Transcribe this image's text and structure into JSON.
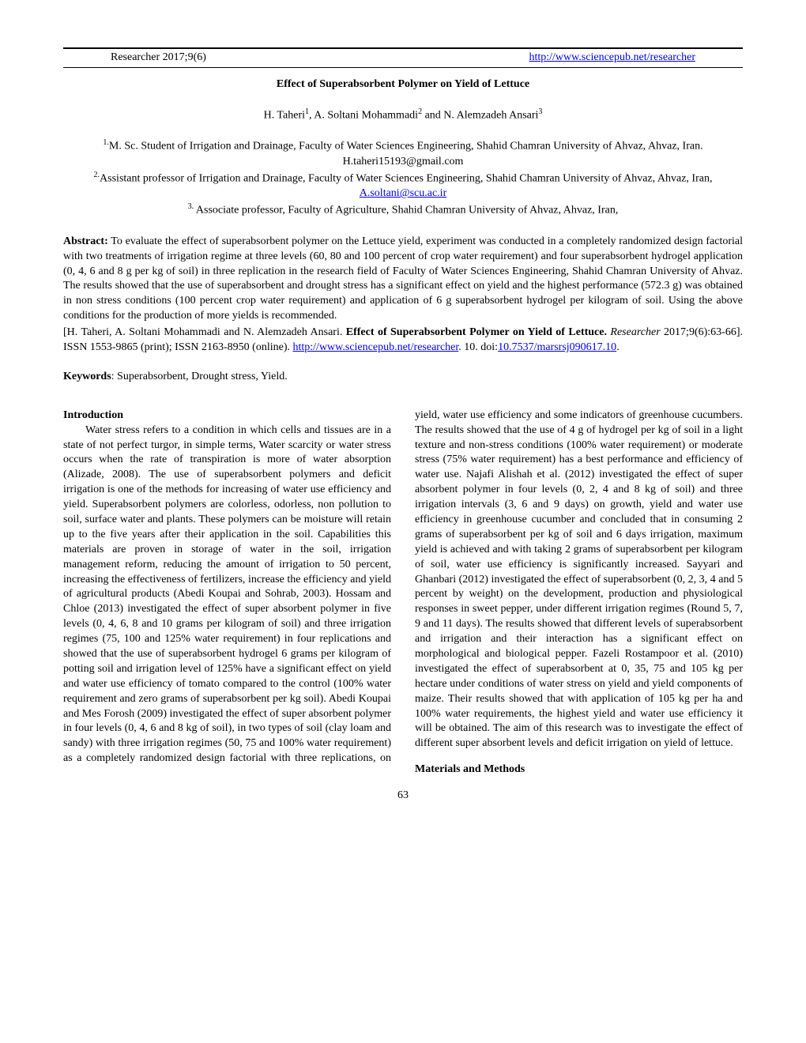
{
  "header": {
    "left": "Researcher 2017;9(6)",
    "right_url_text": "http://www.sciencepub.net/researcher",
    "right_url_href": "http://www.sciencepub.net/researcher"
  },
  "title": "Effect of Superabsorbent Polymer on Yield of Lettuce",
  "authors_html": "H. Taheri<sup>1</sup>, A. Soltani Mohammadi<sup>2</sup> and N. Alemzadeh Ansari<sup>3</sup>",
  "affiliations": {
    "line1_html": "<sup>1.</sup>M. Sc. Student of Irrigation and Drainage, Faculty of Water Sciences Engineering, Shahid Chamran University of Ahvaz, Ahvaz, Iran. H.taheri15193@gmail.com",
    "line2_html": "<sup>2.</sup>Assistant professor of Irrigation and Drainage, Faculty of Water Sciences Engineering, Shahid Chamran University of Ahvaz, Ahvaz, Iran, <a href=\"mailto:A.soltani@scu.ac.ir\">A.soltani@scu.ac.ir</a>",
    "line3_html": "<sup>3.</sup> Associate professor, Faculty of Agriculture, Shahid Chamran University of Ahvaz, Ahvaz, Iran,"
  },
  "abstract": {
    "label": "Abstract:",
    "text": " To evaluate the effect of superabsorbent polymer on the Lettuce yield, experiment was conducted in a completely randomized design factorial with two treatments of irrigation regime at three levels (60, 80 and 100 percent of crop water requirement) and four superabsorbent hydrogel application (0, 4, 6 and 8 g per kg of soil) in three replication in the research field of Faculty of Water Sciences Engineering, Shahid Chamran University of Ahvaz. The results showed that the use of superabsorbent and drought stress has a significant effect on yield and the highest performance (572.3 g) was obtained in non stress conditions (100 percent crop water requirement) and application of 6 g superabsorbent hydrogel per kilogram of soil. Using the above conditions for the production of more yields is recommended."
  },
  "citation": {
    "authors": "[H. Taheri, A. Soltani Mohammadi and N. Alemzadeh Ansari. ",
    "title": "Effect of Superabsorbent Polymer on Yield of Lettuce.",
    "journal": " Researcher",
    "rest": " 2017;9(6):63-66]. ISSN 1553-9865 (print); ISSN 2163-8950 (online). ",
    "link_text": "http://www.sciencepub.net/researcher",
    "link_href": "http://www.sciencepub.net/researcher",
    "after_link": ". 10. doi:",
    "doi_text": "10.7537/marsrsj090617.10",
    "doi_href": "https://doi.org/10.7537/marsrsj090617.10",
    "tail": "."
  },
  "keywords": {
    "label": "Keywords",
    "text": ": Superabsorbent, Drought stress, Yield."
  },
  "sections": {
    "intro_heading": "Introduction",
    "intro_text": "Water stress refers to a condition in which cells and tissues are in a state of not perfect turgor, in simple terms, Water scarcity or water stress occurs when the rate of transpiration is more of water absorption (Alizade, 2008). The use of superabsorbent polymers and deficit irrigation is one of the methods for increasing of water use efficiency and yield. Superabsorbent polymers are colorless, odorless, non pollution to soil, surface water and plants. These polymers can be moisture will retain up to the five years after their application in the soil. Capabilities this materials are proven in storage of water in the soil, irrigation management reform, reducing the amount of irrigation to 50 percent, increasing the effectiveness of fertilizers, increase the efficiency and yield of agricultural products (Abedi Koupai and Sohrab, 2003). Hossam and Chloe (2013) investigated the effect of super absorbent polymer in five levels (0, 4, 6, 8 and 10 grams per kilogram of soil) and three irrigation regimes (75, 100 and 125% water requirement) in four replications and showed that the use of superabsorbent hydrogel 6 grams per kilogram of potting soil and irrigation level of 125% have a significant effect on yield and water use efficiency of tomato compared to the control (100% water requirement and zero grams of superabsorbent per kg soil). Abedi Koupai and Mes Forosh (2009) investigated the effect of super absorbent polymer in four levels (0, 4, 6 and 8 kg of soil), in two types of soil (clay loam and sandy) with three irrigation regimes (50, 75 and 100% water requirement) as a completely randomized design factorial with three replications, on yield, water use efficiency and some indicators of greenhouse cucumbers. The results showed that the use of 4 g of hydrogel per kg of soil in a light texture and non-stress conditions (100% water requirement) or moderate stress (75% water requirement) has a best performance and efficiency of water use. Najafi Alishah et al. (2012) investigated the effect of super absorbent polymer in four levels (0, 2, 4 and 8 kg of soil) and three irrigation intervals (3, 6 and 9 days) on growth, yield and water use efficiency in greenhouse cucumber and concluded that in consuming 2 grams of superabsorbent per kg of soil and 6 days irrigation, maximum yield is achieved and with taking 2 grams of superabsorbent per kilogram of soil, water use efficiency is significantly increased. Sayyari and Ghanbari (2012) investigated the effect of superabsorbent (0, 2, 3, 4 and 5 percent by weight) on the development, production and physiological responses in sweet pepper, under different irrigation regimes (Round 5, 7, 9 and 11 days). The results showed that different levels of superabsorbent and irrigation and their interaction has a significant effect on morphological and biological pepper. Fazeli Rostampoor et al. (2010) investigated the effect of superabsorbent at 0, 35, 75 and 105 kg per hectare under conditions of water stress on yield and yield components of maize. Their results showed that with application of 105 kg per ha and 100% water requirements, the highest yield and water use efficiency it will be obtained. The aim of this research was to investigate the effect of different super absorbent levels and deficit irrigation on yield of lettuce.",
    "mm_heading": "Materials and Methods"
  },
  "page_number": "63",
  "colors": {
    "link": "#0000ee",
    "text": "#000000",
    "background": "#ffffff",
    "rule": "#000000"
  },
  "typography": {
    "base_font": "Times New Roman",
    "base_size_pt": 11,
    "title_weight": "bold"
  }
}
